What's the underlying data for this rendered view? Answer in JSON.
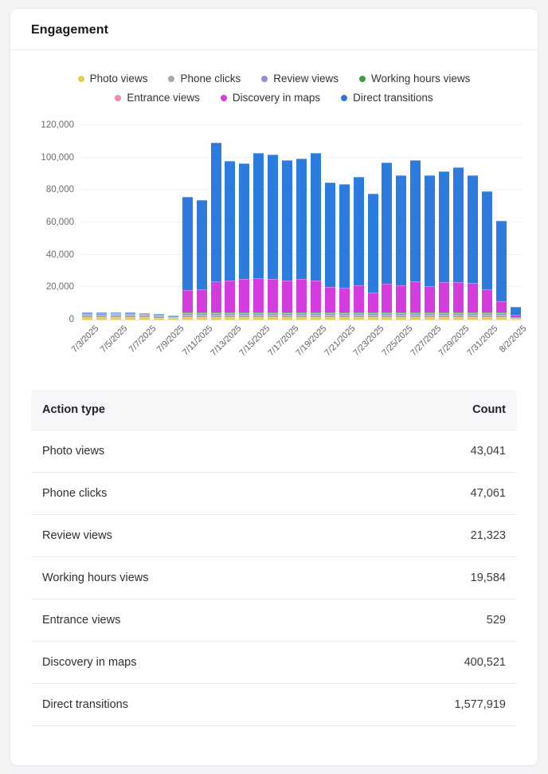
{
  "card": {
    "title": "Engagement"
  },
  "chart_data": {
    "type": "bar",
    "stacked": true,
    "title": "",
    "xlabel": "",
    "ylabel": "",
    "ylim": [
      0,
      120000
    ],
    "ytick_step": 20000,
    "ytick_labels": [
      "0",
      "20,000",
      "40,000",
      "60,000",
      "80,000",
      "100,000",
      "120,000"
    ],
    "grid": true,
    "legend_position": "top",
    "x": [
      "7/3/2025",
      "7/4/2025",
      "7/5/2025",
      "7/6/2025",
      "7/7/2025",
      "7/8/2025",
      "7/9/2025",
      "7/10/2025",
      "7/11/2025",
      "7/12/2025",
      "7/13/2025",
      "7/14/2025",
      "7/15/2025",
      "7/16/2025",
      "7/17/2025",
      "7/18/2025",
      "7/19/2025",
      "7/20/2025",
      "7/21/2025",
      "7/22/2025",
      "7/23/2025",
      "7/24/2025",
      "7/25/2025",
      "7/26/2025",
      "7/27/2025",
      "7/28/2025",
      "7/29/2025",
      "7/30/2025",
      "7/31/2025",
      "8/1/2025",
      "8/2/2025"
    ],
    "x_tick_labels": [
      "7/3/2025",
      "7/5/2025",
      "7/7/2025",
      "7/9/2025",
      "7/11/2025",
      "7/13/2025",
      "7/15/2025",
      "7/17/2025",
      "7/19/2025",
      "7/21/2025",
      "7/23/2025",
      "7/25/2025",
      "7/27/2025",
      "7/29/2025",
      "7/31/2025",
      "8/2/2025"
    ],
    "x_tick_every": 2,
    "series": [
      {
        "name": "Photo views",
        "color": "#e8ca4d",
        "values": [
          1500,
          1600,
          1550,
          1500,
          1450,
          1200,
          800,
          1430,
          1430,
          1430,
          1430,
          1430,
          1430,
          1430,
          1430,
          1430,
          1430,
          1430,
          1430,
          1430,
          1430,
          1430,
          1430,
          1430,
          1430,
          1430,
          1430,
          1430,
          1430,
          1430,
          500
        ]
      },
      {
        "name": "Phone clicks",
        "color": "#a8a8ad",
        "values": [
          1300,
          1400,
          1350,
          1350,
          1300,
          1050,
          700,
          1660,
          1660,
          1660,
          1660,
          1660,
          1660,
          1660,
          1660,
          1660,
          1660,
          1660,
          1660,
          1660,
          1660,
          1660,
          1660,
          1660,
          1660,
          1660,
          1660,
          1660,
          1660,
          1660,
          500
        ]
      },
      {
        "name": "Review views",
        "color": "#928ed6",
        "values": [
          700,
          750,
          700,
          700,
          650,
          550,
          400,
          720,
          720,
          720,
          720,
          720,
          720,
          720,
          720,
          720,
          720,
          720,
          720,
          720,
          720,
          720,
          720,
          720,
          720,
          720,
          720,
          720,
          720,
          720,
          250
        ]
      },
      {
        "name": "Working hours views",
        "color": "#3f9e45",
        "values": [
          100,
          100,
          100,
          100,
          100,
          80,
          60,
          810,
          810,
          810,
          810,
          810,
          810,
          810,
          810,
          810,
          810,
          810,
          810,
          810,
          810,
          810,
          810,
          810,
          810,
          810,
          810,
          810,
          810,
          810,
          200
        ]
      },
      {
        "name": "Entrance views",
        "color": "#f28cad",
        "values": [
          10,
          10,
          10,
          10,
          10,
          10,
          10,
          17,
          17,
          17,
          17,
          17,
          17,
          17,
          17,
          17,
          17,
          17,
          17,
          17,
          17,
          17,
          17,
          17,
          17,
          17,
          17,
          17,
          17,
          17,
          17
        ]
      },
      {
        "name": "Discovery in maps",
        "color": "#d53ce0",
        "values": [
          200,
          200,
          200,
          200,
          200,
          150,
          100,
          13600,
          14200,
          19200,
          19400,
          20300,
          20800,
          20300,
          19400,
          20300,
          19400,
          15600,
          15100,
          16400,
          12200,
          17600,
          16600,
          19000,
          16100,
          18600,
          18600,
          18100,
          14100,
          6900,
          1500
        ]
      },
      {
        "name": "Direct transitions",
        "color": "#2c7ce0",
        "values": [
          400,
          450,
          450,
          400,
          400,
          350,
          300,
          57463,
          54963,
          85363,
          73663,
          71663,
          77563,
          76863,
          74463,
          74363,
          78563,
          64363,
          64063,
          66863,
          60863,
          74463,
          67763,
          74863,
          68463,
          68263,
          70663,
          66463,
          60463,
          49263,
          5000
        ]
      }
    ],
    "legend_row_split": 4
  },
  "table": {
    "headers": {
      "action_type": "Action type",
      "count": "Count"
    },
    "rows": [
      {
        "label": "Photo views",
        "count": "43,041"
      },
      {
        "label": "Phone clicks",
        "count": "47,061"
      },
      {
        "label": "Review views",
        "count": "21,323"
      },
      {
        "label": "Working hours views",
        "count": "19,584"
      },
      {
        "label": "Entrance views",
        "count": "529"
      },
      {
        "label": "Discovery in maps",
        "count": "400,521"
      },
      {
        "label": "Direct transitions",
        "count": "1,577,919"
      }
    ]
  }
}
